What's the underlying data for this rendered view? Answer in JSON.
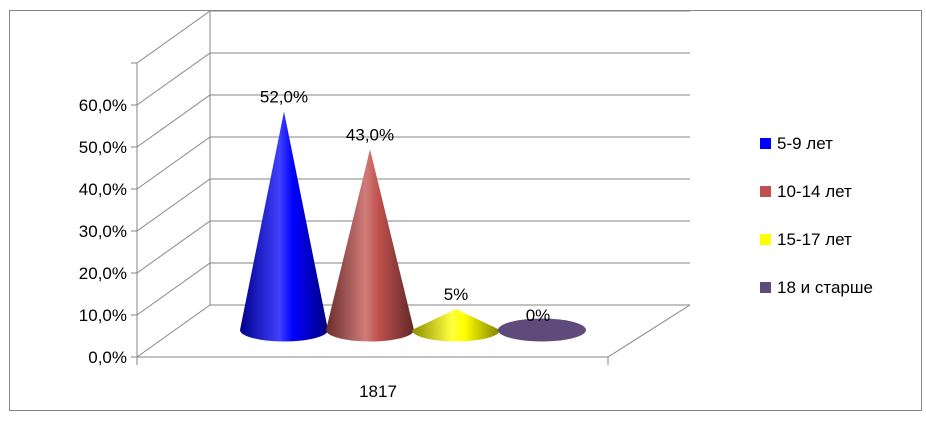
{
  "chart_data": {
    "type": "bar",
    "shape": "cone-3d",
    "categories": [
      "1817"
    ],
    "series": [
      {
        "name": "5-9 лет",
        "values": [
          52.0
        ],
        "label": "52,0%",
        "color": "#0000FF"
      },
      {
        "name": "10-14 лет",
        "values": [
          43.0
        ],
        "label": "43,0%",
        "color": "#C0504D"
      },
      {
        "name": "15-17 лет",
        "values": [
          5.0
        ],
        "label": "5%",
        "color": "#FFFF00"
      },
      {
        "name": "18 и старше",
        "values": [
          0.0
        ],
        "label": "0%",
        "color": "#604A7B"
      }
    ],
    "yticks": [
      "0,0%",
      "10,0%",
      "20,0%",
      "30,0%",
      "40,0%",
      "50,0%",
      "60,0%"
    ],
    "ylim": [
      0,
      70
    ],
    "grid": true,
    "legend_position": "right"
  }
}
